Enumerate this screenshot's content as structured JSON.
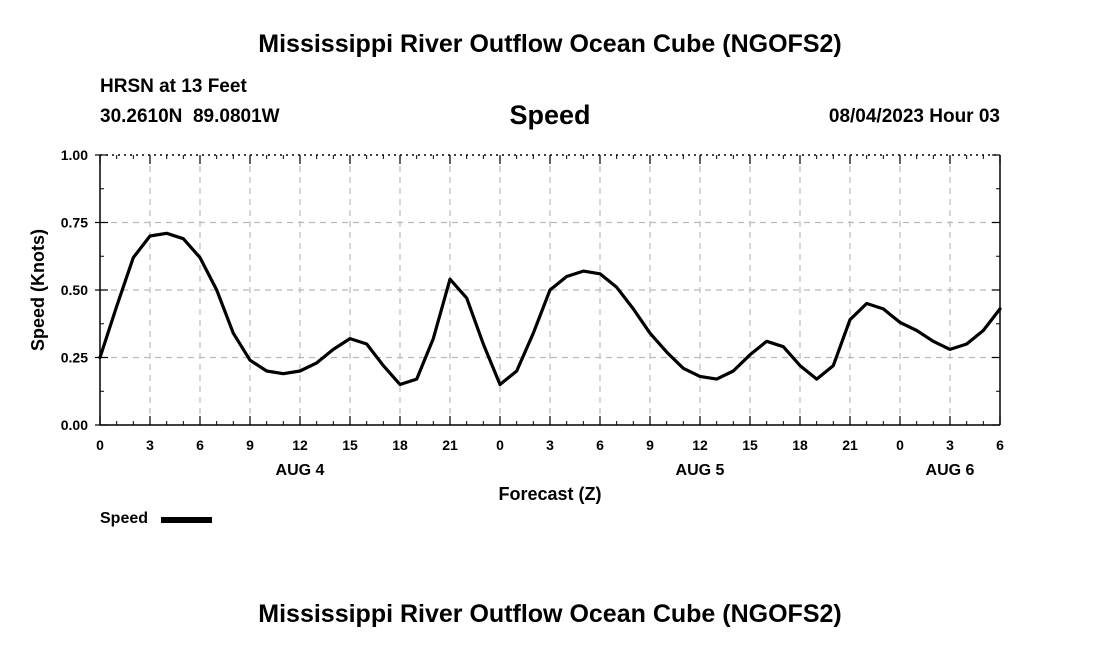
{
  "header": {
    "title": "Mississippi River Outflow Ocean Cube (NGOFS2)",
    "station": "HRSN at 13 Feet",
    "location": "30.2610N  89.0801W",
    "variable": "Speed",
    "datetime": "08/04/2023 Hour 03"
  },
  "footer": {
    "title": "Mississippi River Outflow Ocean Cube (NGOFS2)"
  },
  "legend": {
    "label": "Speed"
  },
  "chart_data": {
    "type": "line",
    "title": "Speed",
    "xlabel": "Forecast (Z)",
    "ylabel": "Speed (Knots)",
    "xlim": [
      0,
      54
    ],
    "ylim": [
      0,
      1
    ],
    "grid": true,
    "legend_position": "bottom-left",
    "x_unit": "hours since 2023-08-04 00Z",
    "x_ticks": [
      0,
      3,
      6,
      9,
      12,
      15,
      18,
      21,
      24,
      27,
      30,
      33,
      36,
      39,
      42,
      45,
      48,
      51,
      54
    ],
    "x_tick_labels": [
      "0",
      "3",
      "6",
      "9",
      "12",
      "15",
      "18",
      "21",
      "0",
      "3",
      "6",
      "9",
      "12",
      "15",
      "18",
      "21",
      "0",
      "3",
      "6"
    ],
    "y_ticks": [
      0,
      0.25,
      0.5,
      0.75,
      1
    ],
    "y_tick_labels": [
      "0.00",
      "0.25",
      "0.50",
      "0.75",
      "1.00"
    ],
    "day_labels": [
      {
        "x": 12,
        "label": "AUG 4"
      },
      {
        "x": 36,
        "label": "AUG 5"
      },
      {
        "x": 51,
        "label": "AUG 6"
      }
    ],
    "series": [
      {
        "name": "Speed",
        "color": "#000000",
        "x": [
          0,
          1,
          2,
          3,
          4,
          5,
          6,
          7,
          8,
          9,
          10,
          11,
          12,
          13,
          14,
          15,
          16,
          17,
          18,
          19,
          20,
          21,
          22,
          23,
          24,
          25,
          26,
          27,
          28,
          29,
          30,
          31,
          32,
          33,
          34,
          35,
          36,
          37,
          38,
          39,
          40,
          41,
          42,
          43,
          44,
          45,
          46,
          47,
          48,
          49,
          50,
          51,
          52,
          53,
          54
        ],
        "values": [
          0.25,
          0.44,
          0.62,
          0.7,
          0.71,
          0.69,
          0.62,
          0.5,
          0.34,
          0.24,
          0.2,
          0.19,
          0.2,
          0.23,
          0.28,
          0.32,
          0.3,
          0.22,
          0.15,
          0.17,
          0.32,
          0.54,
          0.47,
          0.3,
          0.15,
          0.2,
          0.34,
          0.5,
          0.55,
          0.57,
          0.56,
          0.51,
          0.43,
          0.34,
          0.27,
          0.21,
          0.18,
          0.17,
          0.2,
          0.26,
          0.31,
          0.29,
          0.22,
          0.17,
          0.22,
          0.39,
          0.45,
          0.43,
          0.38,
          0.35,
          0.31,
          0.28,
          0.3,
          0.35,
          0.43
        ]
      }
    ]
  }
}
